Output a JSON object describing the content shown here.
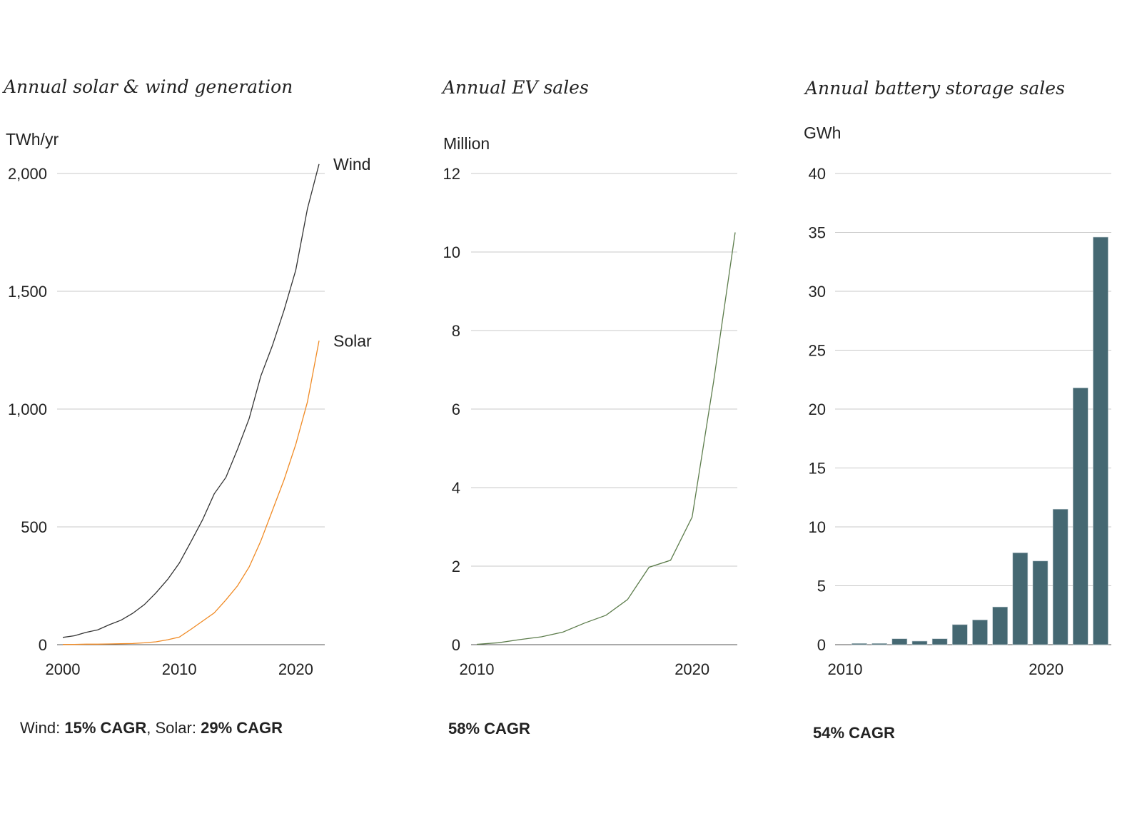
{
  "colors": {
    "wind": "#333333",
    "solar": "#f08a24",
    "ev": "#5d7d4c",
    "battery": "#456872",
    "grid": "#c8c8c8"
  },
  "chart_data": [
    {
      "type": "line",
      "title": "Annual solar & wind generation",
      "ylabel": "TWh/yr",
      "ylim": [
        0,
        2000
      ],
      "yticks": [
        "0",
        "500",
        "1,000",
        "1,500",
        "2,000"
      ],
      "ytick_values": [
        0,
        500,
        1000,
        1500,
        2000
      ],
      "xticks": [
        "2000",
        "2010",
        "2020"
      ],
      "xtick_values": [
        2000,
        2010,
        2020
      ],
      "xlim": [
        2000,
        2022
      ],
      "x": [
        2000,
        2001,
        2002,
        2003,
        2004,
        2005,
        2006,
        2007,
        2008,
        2009,
        2010,
        2011,
        2012,
        2013,
        2014,
        2015,
        2016,
        2017,
        2018,
        2019,
        2020,
        2021,
        2022
      ],
      "series": [
        {
          "name": "Wind",
          "color_key": "wind",
          "values": [
            31,
            38,
            52,
            63,
            85,
            104,
            133,
            170,
            220,
            277,
            346,
            437,
            530,
            640,
            710,
            830,
            960,
            1140,
            1270,
            1420,
            1590,
            1850,
            2040
          ]
        },
        {
          "name": "Solar",
          "color_key": "solar",
          "values": [
            1,
            1,
            2,
            2,
            3,
            4,
            5,
            8,
            12,
            21,
            32,
            65,
            100,
            135,
            190,
            250,
            330,
            440,
            570,
            700,
            850,
            1030,
            1290
          ]
        }
      ],
      "footnote": [
        {
          "text": "Wind: ",
          "bold": false
        },
        {
          "text": "15% CAGR",
          "bold": true
        },
        {
          "text": ", Solar: ",
          "bold": false
        },
        {
          "text": "29% CAGR",
          "bold": true
        }
      ]
    },
    {
      "type": "line",
      "title": "Annual EV sales",
      "ylabel": "Million",
      "ylim": [
        0,
        12
      ],
      "yticks": [
        "0",
        "2",
        "4",
        "6",
        "8",
        "10",
        "12"
      ],
      "ytick_values": [
        0,
        2,
        4,
        6,
        8,
        10,
        12
      ],
      "xticks": [
        "2010",
        "2020"
      ],
      "xtick_values": [
        2010,
        2020
      ],
      "xlim": [
        2010,
        2022
      ],
      "x": [
        2010,
        2011,
        2012,
        2013,
        2014,
        2015,
        2016,
        2017,
        2018,
        2019,
        2020,
        2021,
        2022
      ],
      "series": [
        {
          "name": "EV sales",
          "color_key": "ev",
          "values": [
            0.01,
            0.05,
            0.13,
            0.2,
            0.32,
            0.55,
            0.75,
            1.15,
            1.97,
            2.15,
            3.25,
            6.7,
            10.5
          ]
        }
      ],
      "footnote": [
        {
          "text": "58% CAGR",
          "bold": true
        }
      ]
    },
    {
      "type": "bar",
      "title": "Annual battery storage sales",
      "ylabel": "GWh",
      "ylim": [
        0,
        40
      ],
      "yticks": [
        "0",
        "5",
        "10",
        "15",
        "20",
        "25",
        "30",
        "35",
        "40"
      ],
      "ytick_values": [
        0,
        5,
        10,
        15,
        20,
        25,
        30,
        35,
        40
      ],
      "xticks": [
        "2010",
        "2020"
      ],
      "xtick_values": [
        2010,
        2020
      ],
      "categories": [
        2010,
        2011,
        2012,
        2013,
        2014,
        2015,
        2016,
        2017,
        2018,
        2019,
        2020,
        2021,
        2022
      ],
      "values": [
        0.1,
        0.1,
        0.5,
        0.3,
        0.5,
        1.7,
        2.1,
        3.2,
        7.8,
        7.1,
        11.5,
        21.8,
        34.6
      ],
      "color_key": "battery",
      "footnote": [
        {
          "text": "54% CAGR",
          "bold": true
        }
      ]
    }
  ]
}
